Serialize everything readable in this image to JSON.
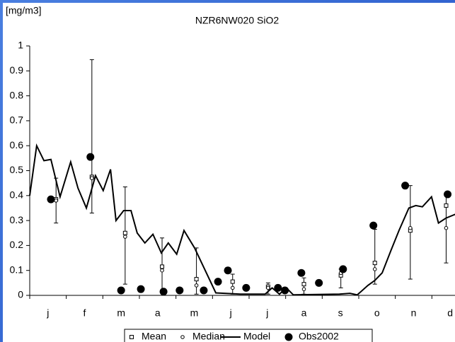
{
  "chart_data": {
    "type": "line",
    "title": "NZR6NW020  SiO2",
    "y_label": "[mg/m3]",
    "xlim": [
      0,
      12
    ],
    "ylim": [
      0,
      1
    ],
    "xticks": [
      {
        "value": 0.5,
        "label": "j"
      },
      {
        "value": 1.5,
        "label": "f"
      },
      {
        "value": 2.5,
        "label": "m"
      },
      {
        "value": 3.5,
        "label": "a"
      },
      {
        "value": 4.5,
        "label": "m"
      },
      {
        "value": 5.5,
        "label": "j"
      },
      {
        "value": 6.5,
        "label": "j"
      },
      {
        "value": 7.5,
        "label": "a"
      },
      {
        "value": 8.5,
        "label": "s"
      },
      {
        "value": 9.5,
        "label": "o"
      },
      {
        "value": 10.5,
        "label": "n"
      },
      {
        "value": 11.5,
        "label": "d"
      }
    ],
    "yticks": [
      0,
      0.1,
      0.2,
      0.3,
      0.4,
      0.5,
      0.6,
      0.7,
      0.8,
      0.9,
      1
    ],
    "legend": "bottom",
    "series": [
      {
        "name": "Mean",
        "kind": "errorbar",
        "color": "#000000",
        "x": [
          0.72,
          1.7,
          2.61,
          3.62,
          4.56,
          5.55,
          6.52,
          7.5,
          8.51,
          9.44,
          10.41,
          11.39
        ],
        "values": [
          0.385,
          0.475,
          0.25,
          0.115,
          0.065,
          0.055,
          0.035,
          0.045,
          0.08,
          0.13,
          0.26,
          0.36
        ],
        "low": [
          0.29,
          0.33,
          0.045,
          0.01,
          0.005,
          0.005,
          0.005,
          0.005,
          0.03,
          0.045,
          0.065,
          0.13
        ],
        "high": [
          0.47,
          0.945,
          0.435,
          0.23,
          0.19,
          0.085,
          0.05,
          0.07,
          0.105,
          0.265,
          0.44,
          0.41
        ]
      },
      {
        "name": "Median",
        "kind": "point",
        "color": "#000000",
        "x": [
          0.72,
          1.7,
          2.61,
          3.62,
          4.56,
          5.55,
          6.52,
          7.5,
          8.51,
          9.44,
          10.41,
          11.39
        ],
        "values": [
          0.38,
          0.47,
          0.235,
          0.1,
          0.04,
          0.03,
          0.03,
          0.025,
          0.09,
          0.105,
          0.27,
          0.27
        ]
      },
      {
        "name": "Model",
        "kind": "line",
        "color": "#000000",
        "x": [
          0,
          0.19,
          0.39,
          0.58,
          0.83,
          1.12,
          1.32,
          1.55,
          1.8,
          2.01,
          2.21,
          2.36,
          2.57,
          2.77,
          2.94,
          3.15,
          3.37,
          3.6,
          3.79,
          4.02,
          4.22,
          4.51,
          4.8,
          5.09,
          5.76,
          6.44,
          6.63,
          6.83,
          7.02,
          7.21,
          8.47,
          8.76,
          8.96,
          9.25,
          9.44,
          9.64,
          9.88,
          10.1,
          10.37,
          10.56,
          10.74,
          10.99,
          11.18,
          11.39,
          11.64
        ],
        "values": [
          0.4,
          0.6,
          0.54,
          0.545,
          0.395,
          0.535,
          0.43,
          0.35,
          0.48,
          0.42,
          0.505,
          0.3,
          0.34,
          0.34,
          0.25,
          0.21,
          0.245,
          0.17,
          0.21,
          0.165,
          0.26,
          0.19,
          0.1,
          0.01,
          0.005,
          0.005,
          0.03,
          0.005,
          0.03,
          0.002,
          0.005,
          0.008,
          0.002,
          0.04,
          0.06,
          0.09,
          0.18,
          0.26,
          0.35,
          0.36,
          0.355,
          0.395,
          0.29,
          0.31,
          0.325
        ]
      },
      {
        "name": "Obs2002",
        "kind": "dot",
        "color": "#000000",
        "x": [
          0.58,
          1.66,
          2.5,
          3.04,
          3.66,
          4.1,
          4.76,
          5.15,
          5.42,
          5.92,
          6.79,
          6.98,
          7.43,
          7.91,
          8.57,
          9.4,
          10.27,
          11.43
        ],
        "values": [
          0.385,
          0.555,
          0.02,
          0.025,
          0.015,
          0.02,
          0.02,
          0.055,
          0.1,
          0.03,
          0.03,
          0.02,
          0.09,
          0.05,
          0.105,
          0.28,
          0.44,
          0.405
        ]
      }
    ]
  }
}
